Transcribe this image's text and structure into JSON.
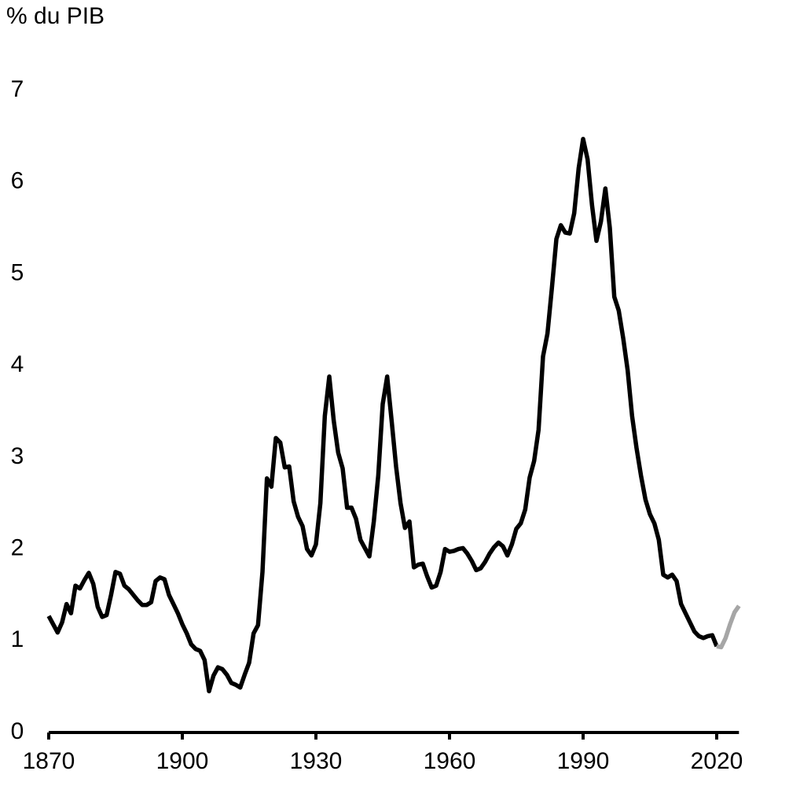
{
  "chart_data": {
    "type": "line",
    "y_label": "% du PIB",
    "x": [
      1870,
      1871,
      1872,
      1873,
      1874,
      1875,
      1876,
      1877,
      1878,
      1879,
      1880,
      1881,
      1882,
      1883,
      1884,
      1885,
      1886,
      1887,
      1888,
      1889,
      1890,
      1891,
      1892,
      1893,
      1894,
      1895,
      1896,
      1897,
      1898,
      1899,
      1900,
      1901,
      1902,
      1903,
      1904,
      1905,
      1906,
      1907,
      1908,
      1909,
      1910,
      1911,
      1912,
      1913,
      1914,
      1915,
      1916,
      1917,
      1918,
      1919,
      1920,
      1921,
      1922,
      1923,
      1924,
      1925,
      1926,
      1927,
      1928,
      1929,
      1930,
      1931,
      1932,
      1933,
      1934,
      1935,
      1936,
      1937,
      1938,
      1939,
      1940,
      1941,
      1942,
      1943,
      1944,
      1945,
      1946,
      1947,
      1948,
      1949,
      1950,
      1951,
      1952,
      1953,
      1954,
      1955,
      1956,
      1957,
      1958,
      1959,
      1960,
      1961,
      1962,
      1963,
      1964,
      1965,
      1966,
      1967,
      1968,
      1969,
      1970,
      1971,
      1972,
      1973,
      1974,
      1975,
      1976,
      1977,
      1978,
      1979,
      1980,
      1981,
      1982,
      1983,
      1984,
      1985,
      1986,
      1987,
      1988,
      1989,
      1990,
      1991,
      1992,
      1993,
      1994,
      1995,
      1996,
      1997,
      1998,
      1999,
      2000,
      2001,
      2002,
      2003,
      2004,
      2005,
      2006,
      2007,
      2008,
      2009,
      2010,
      2011,
      2012,
      2013,
      2014,
      2015,
      2016,
      2017,
      2018,
      2019,
      2020,
      2021,
      2022,
      2023,
      2024,
      2025
    ],
    "series": [
      {
        "color": "#000000",
        "values": [
          1.27,
          1.18,
          1.09,
          1.2,
          1.4,
          1.3,
          1.6,
          1.57,
          1.66,
          1.74,
          1.62,
          1.37,
          1.26,
          1.28,
          1.5,
          1.75,
          1.73,
          1.6,
          1.56,
          1.5,
          1.44,
          1.39,
          1.39,
          1.42,
          1.65,
          1.69,
          1.67,
          1.5,
          1.4,
          1.3,
          1.18,
          1.08,
          0.96,
          0.91,
          0.89,
          0.79,
          0.45,
          0.62,
          0.71,
          0.69,
          0.63,
          0.54,
          0.52,
          0.49,
          0.63,
          0.76,
          1.08,
          1.17,
          1.75,
          2.77,
          2.68,
          3.21,
          3.16,
          2.89,
          2.9,
          2.52,
          2.35,
          2.25,
          2.0,
          1.93,
          2.05,
          2.5,
          3.45,
          3.88,
          3.4,
          3.05,
          2.88,
          2.45,
          2.45,
          2.33,
          2.1,
          2.01,
          1.92,
          2.3,
          2.8,
          3.58,
          3.88,
          3.4,
          2.9,
          2.5,
          2.23,
          2.3,
          1.8,
          1.83,
          1.84,
          1.7,
          1.58,
          1.6,
          1.75,
          2.0,
          1.97,
          1.98,
          2.0,
          2.01,
          1.95,
          1.87,
          1.77,
          1.79,
          1.86,
          1.95,
          2.02,
          2.07,
          2.03,
          1.93,
          2.05,
          2.22,
          2.28,
          2.43,
          2.78,
          2.96,
          3.3,
          4.1,
          4.35,
          4.85,
          5.38,
          5.53,
          5.45,
          5.44,
          5.66,
          6.15,
          6.47,
          6.25,
          5.75,
          5.36,
          5.57,
          5.93,
          5.5,
          4.75,
          4.6,
          4.3,
          3.95,
          3.45,
          3.1,
          2.8,
          2.54,
          2.38,
          2.28,
          2.1,
          1.72,
          1.69,
          1.72,
          1.65,
          1.4,
          1.3,
          1.2,
          1.1,
          1.05,
          1.03,
          1.05,
          1.06,
          0.94,
          null,
          null,
          null,
          null,
          null
        ]
      },
      {
        "color": "#a6a6a6",
        "values": [
          null,
          null,
          null,
          null,
          null,
          null,
          null,
          null,
          null,
          null,
          null,
          null,
          null,
          null,
          null,
          null,
          null,
          null,
          null,
          null,
          null,
          null,
          null,
          null,
          null,
          null,
          null,
          null,
          null,
          null,
          null,
          null,
          null,
          null,
          null,
          null,
          null,
          null,
          null,
          null,
          null,
          null,
          null,
          null,
          null,
          null,
          null,
          null,
          null,
          null,
          null,
          null,
          null,
          null,
          null,
          null,
          null,
          null,
          null,
          null,
          null,
          null,
          null,
          null,
          null,
          null,
          null,
          null,
          null,
          null,
          null,
          null,
          null,
          null,
          null,
          null,
          null,
          null,
          null,
          null,
          null,
          null,
          null,
          null,
          null,
          null,
          null,
          null,
          null,
          null,
          null,
          null,
          null,
          null,
          null,
          null,
          null,
          null,
          null,
          null,
          null,
          null,
          null,
          null,
          null,
          null,
          null,
          null,
          null,
          null,
          null,
          null,
          null,
          null,
          null,
          null,
          null,
          null,
          null,
          null,
          null,
          null,
          null,
          null,
          null,
          null,
          null,
          null,
          null,
          null,
          null,
          null,
          null,
          null,
          null,
          null,
          null,
          null,
          null,
          null,
          null,
          null,
          null,
          null,
          null,
          null,
          null,
          null,
          null,
          null,
          0.94,
          0.93,
          1.03,
          1.18,
          1.31,
          1.38
        ]
      }
    ],
    "xlim": [
      1870,
      2025
    ],
    "xticks": [
      1870,
      1900,
      1930,
      1960,
      1990,
      2020
    ],
    "ylim": [
      0,
      7
    ],
    "yticks": [
      0,
      1,
      2,
      3,
      4,
      5,
      6,
      7
    ]
  }
}
